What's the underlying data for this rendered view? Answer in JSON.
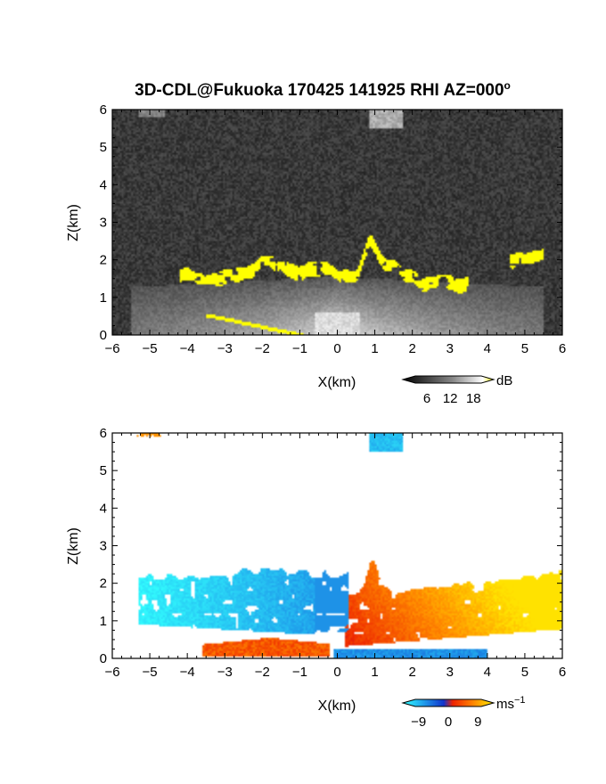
{
  "figure": {
    "title": "3D-CDL@Fukuoka 170425 141925 RHI AZ=000",
    "title_superscript": "o"
  },
  "chart_data": [
    {
      "type": "heatmap",
      "panel": "top",
      "title": "3D-CDL@Fukuoka 170425 141925 RHI AZ=000°",
      "xlabel": "X(km)",
      "ylabel": "Z(km)",
      "xlim": [
        -6,
        6
      ],
      "ylim": [
        0,
        6
      ],
      "xticks": [
        -6,
        -5,
        -4,
        -3,
        -2,
        -1,
        0,
        1,
        2,
        3,
        4,
        5,
        6
      ],
      "yticks": [
        0,
        1,
        2,
        3,
        4,
        5,
        6
      ],
      "colorbar": {
        "unit": "dB",
        "ticks": [
          6,
          12,
          18
        ],
        "colormap": "grayscale-to-yellow",
        "extend": "both"
      },
      "features": [
        {
          "name": "yellow cloud/aerosol top (>=18 dB)",
          "x_range": [
            -4.2,
            5.5
          ],
          "z_range": [
            1.5,
            2.9
          ]
        },
        {
          "name": "bright near-surface echo",
          "x_range": [
            -4,
            4
          ],
          "z_range": [
            0,
            1.6
          ]
        },
        {
          "name": "isolated echo aloft",
          "x_range": [
            0.8,
            1.7
          ],
          "z_range": [
            5.5,
            6.0
          ]
        }
      ],
      "colors": {
        "background": "#262626",
        "strong": "#ffff00"
      }
    },
    {
      "type": "heatmap",
      "panel": "bottom",
      "xlabel": "X(km)",
      "ylabel": "Z(km)",
      "xlim": [
        -6,
        6
      ],
      "ylim": [
        0,
        6
      ],
      "xticks": [
        -6,
        -5,
        -4,
        -3,
        -2,
        -1,
        0,
        1,
        2,
        3,
        4,
        5,
        6
      ],
      "yticks": [
        0,
        1,
        2,
        3,
        4,
        5,
        6
      ],
      "colorbar": {
        "unit": "ms",
        "unit_exponent": "−1",
        "ticks": [
          -9,
          0,
          9
        ],
        "tick_labels": [
          "−9",
          "0",
          "9"
        ],
        "colormap": "cyan-blue-red-orange-yellow",
        "extend": "both",
        "range": [
          -10,
          10
        ]
      },
      "features": [
        {
          "name": "cyan/blue negative velocities",
          "x_range": [
            -5.3,
            0.3
          ],
          "z_range": [
            0.7,
            2.4
          ],
          "velocity": -7
        },
        {
          "name": "red/orange/yellow positive velocities",
          "x_range": [
            0.2,
            6.0
          ],
          "z_range": [
            0.3,
            2.9
          ],
          "velocity": 6
        },
        {
          "name": "low-level positive jet",
          "x_range": [
            -3.4,
            -0.2
          ],
          "z_range": [
            0.05,
            0.6
          ],
          "velocity": 2
        },
        {
          "name": "near-surface negative flow",
          "x_range": [
            0.0,
            4.0
          ],
          "z_range": [
            0.0,
            0.3
          ],
          "velocity": -5
        },
        {
          "name": "blue echo aloft",
          "x_range": [
            0.85,
            1.75
          ],
          "z_range": [
            5.5,
            6.0
          ],
          "velocity": -6
        },
        {
          "name": "orange echo aloft",
          "x_range": [
            -5.4,
            -4.7
          ],
          "z_range": [
            5.85,
            6.0
          ],
          "velocity": 6
        }
      ]
    }
  ]
}
